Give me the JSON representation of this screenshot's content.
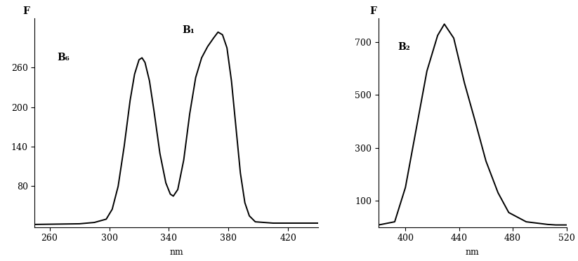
{
  "chart_data": [
    {
      "type": "line",
      "xlabel": "nm",
      "ylabel": "F",
      "color": "#000000",
      "annotations": [
        "B₆",
        "B₁"
      ],
      "x": [
        250,
        280,
        290,
        298,
        302,
        306,
        310,
        314,
        317,
        320,
        322,
        324,
        327,
        330,
        334,
        338,
        341,
        343,
        346,
        350,
        354,
        358,
        362,
        366,
        370,
        373,
        376,
        379,
        382,
        385,
        388,
        391,
        394,
        398,
        410,
        440
      ],
      "values": [
        22,
        23,
        25,
        30,
        45,
        80,
        140,
        210,
        250,
        272,
        275,
        268,
        240,
        195,
        130,
        85,
        68,
        65,
        75,
        120,
        190,
        245,
        275,
        292,
        305,
        314,
        310,
        290,
        240,
        170,
        100,
        55,
        35,
        26,
        24,
        24
      ],
      "xlim": [
        250,
        440
      ],
      "ylim": [
        18,
        335
      ],
      "xticks": [
        260,
        300,
        340,
        380,
        420
      ],
      "yticks": [
        80,
        140,
        200,
        260
      ]
    },
    {
      "type": "line",
      "xlabel": "nm",
      "ylabel": "F",
      "color": "#000000",
      "annotations": [
        "B₂"
      ],
      "x": [
        380,
        392,
        400,
        408,
        416,
        424,
        429,
        436,
        444,
        452,
        460,
        469,
        477,
        490,
        506,
        512,
        520
      ],
      "values": [
        8,
        20,
        150,
        370,
        590,
        725,
        768,
        715,
        545,
        400,
        250,
        130,
        55,
        20,
        10,
        8,
        8
      ],
      "xlim": [
        380,
        520
      ],
      "ylim": [
        0,
        790
      ],
      "xticks": [
        400,
        440,
        480,
        520
      ],
      "yticks": [
        100,
        300,
        500,
        700
      ]
    }
  ]
}
